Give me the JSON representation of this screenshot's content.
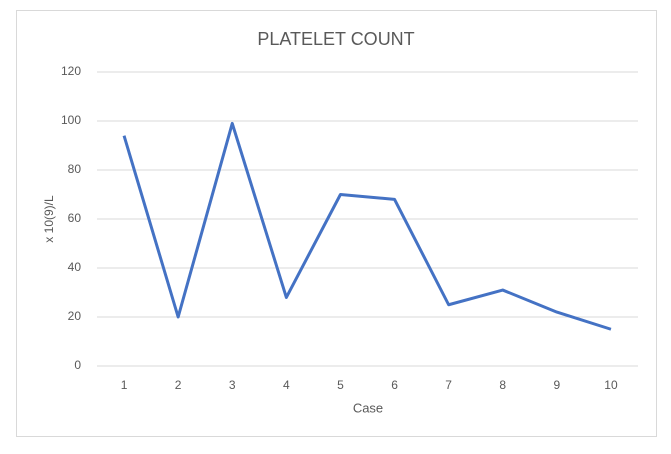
{
  "chart_data": {
    "type": "line",
    "title": "PLATELET COUNT",
    "x_label": "Case",
    "y_label": "x 10(9)/L",
    "categories": [
      "1",
      "2",
      "3",
      "4",
      "5",
      "6",
      "7",
      "8",
      "9",
      "10"
    ],
    "series": [
      {
        "name": "Platelet count",
        "color": "#4472c4",
        "values": [
          94,
          20,
          99,
          28,
          70,
          68,
          25,
          31,
          22,
          15
        ]
      }
    ],
    "ylim": [
      0,
      120
    ],
    "yticks": [
      0,
      20,
      40,
      60,
      80,
      100,
      120
    ],
    "grid": true,
    "legend": false
  }
}
